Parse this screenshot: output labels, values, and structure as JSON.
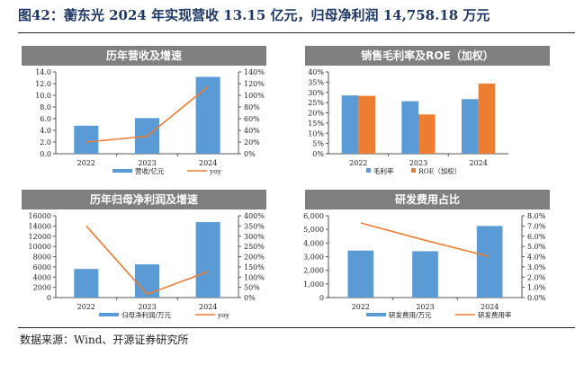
{
  "figure": {
    "title": "图42：蘅东光 2024 年实现营收 13.15 亿元，归母净利润 14,758.18 万元",
    "source": "数据来源：Wind、开源证券研究所"
  },
  "colors": {
    "bar_blue": "#5b9bd5",
    "bar_orange": "#ed7d31",
    "line_orange": "#ed7d31",
    "header_gray": "#7f7f7f"
  },
  "chart_data": [
    {
      "type": "bar",
      "title": "历年营收及增速",
      "categories": [
        "2022",
        "2023",
        "2024"
      ],
      "series": [
        {
          "name": "营收/亿元",
          "kind": "bar",
          "axis": "left",
          "values": [
            4.8,
            6.1,
            13.15
          ]
        },
        {
          "name": "yoy",
          "kind": "line",
          "axis": "right",
          "values": [
            20,
            30,
            115
          ]
        }
      ],
      "y_left": {
        "min": 0,
        "max": 14,
        "step": 2,
        "ticks": [
          "0.0",
          "2.0",
          "4.0",
          "6.0",
          "8.0",
          "10.0",
          "12.0",
          "14.0"
        ]
      },
      "y_right": {
        "min": 0,
        "max": 140,
        "step": 20,
        "ticks": [
          "0%",
          "20%",
          "40%",
          "60%",
          "80%",
          "100%",
          "120%",
          "140%"
        ]
      },
      "legend": "bottom"
    },
    {
      "type": "bar",
      "title": "销售毛利率及ROE（加权）",
      "categories": [
        "2022",
        "2023",
        "2024"
      ],
      "series": [
        {
          "name": "毛利率",
          "kind": "bar",
          "axis": "left",
          "values": [
            28.5,
            25.7,
            26.7
          ]
        },
        {
          "name": "ROE（加权）",
          "kind": "bar",
          "axis": "left",
          "values": [
            28.3,
            19.2,
            34.3
          ]
        }
      ],
      "y_left": {
        "min": 0,
        "max": 40,
        "step": 5,
        "ticks": [
          "0%",
          "5%",
          "10%",
          "15%",
          "20%",
          "25%",
          "30%",
          "35%",
          "40%"
        ]
      },
      "legend": "bottom"
    },
    {
      "type": "bar",
      "title": "历年归母净利润及增速",
      "categories": [
        "2022",
        "2023",
        "2024"
      ],
      "series": [
        {
          "name": "归母净利润/万元",
          "kind": "bar",
          "axis": "left",
          "values": [
            5600,
            6500,
            14758.18
          ]
        },
        {
          "name": "yoy",
          "kind": "line",
          "axis": "right",
          "values": [
            350,
            16,
            127
          ]
        }
      ],
      "y_left": {
        "min": 0,
        "max": 16000,
        "step": 2000,
        "ticks": [
          "0",
          "2000",
          "4000",
          "6000",
          "8000",
          "10000",
          "12000",
          "14000",
          "16000"
        ]
      },
      "y_right": {
        "min": 0,
        "max": 400,
        "step": 50,
        "ticks": [
          "0%",
          "50%",
          "100%",
          "150%",
          "200%",
          "250%",
          "300%",
          "350%",
          "400%"
        ]
      },
      "legend": "bottom"
    },
    {
      "type": "bar",
      "title": "研发费用占比",
      "categories": [
        "2022",
        "2023",
        "2024"
      ],
      "series": [
        {
          "name": "研发费用/万元",
          "kind": "bar",
          "axis": "left",
          "values": [
            3450,
            3400,
            5250
          ]
        },
        {
          "name": "研发费用率",
          "kind": "line",
          "axis": "right",
          "values": [
            7.3,
            5.6,
            4.0
          ]
        }
      ],
      "y_left": {
        "min": 0,
        "max": 6000,
        "step": 1000,
        "ticks": [
          "0",
          "1,000",
          "2,000",
          "3,000",
          "4,000",
          "5,000",
          "6,000"
        ]
      },
      "y_right": {
        "min": 0,
        "max": 8,
        "step": 1,
        "ticks": [
          "0.0%",
          "1.0%",
          "2.0%",
          "3.0%",
          "4.0%",
          "5.0%",
          "6.0%",
          "7.0%",
          "8.0%"
        ]
      },
      "legend": "bottom"
    }
  ]
}
